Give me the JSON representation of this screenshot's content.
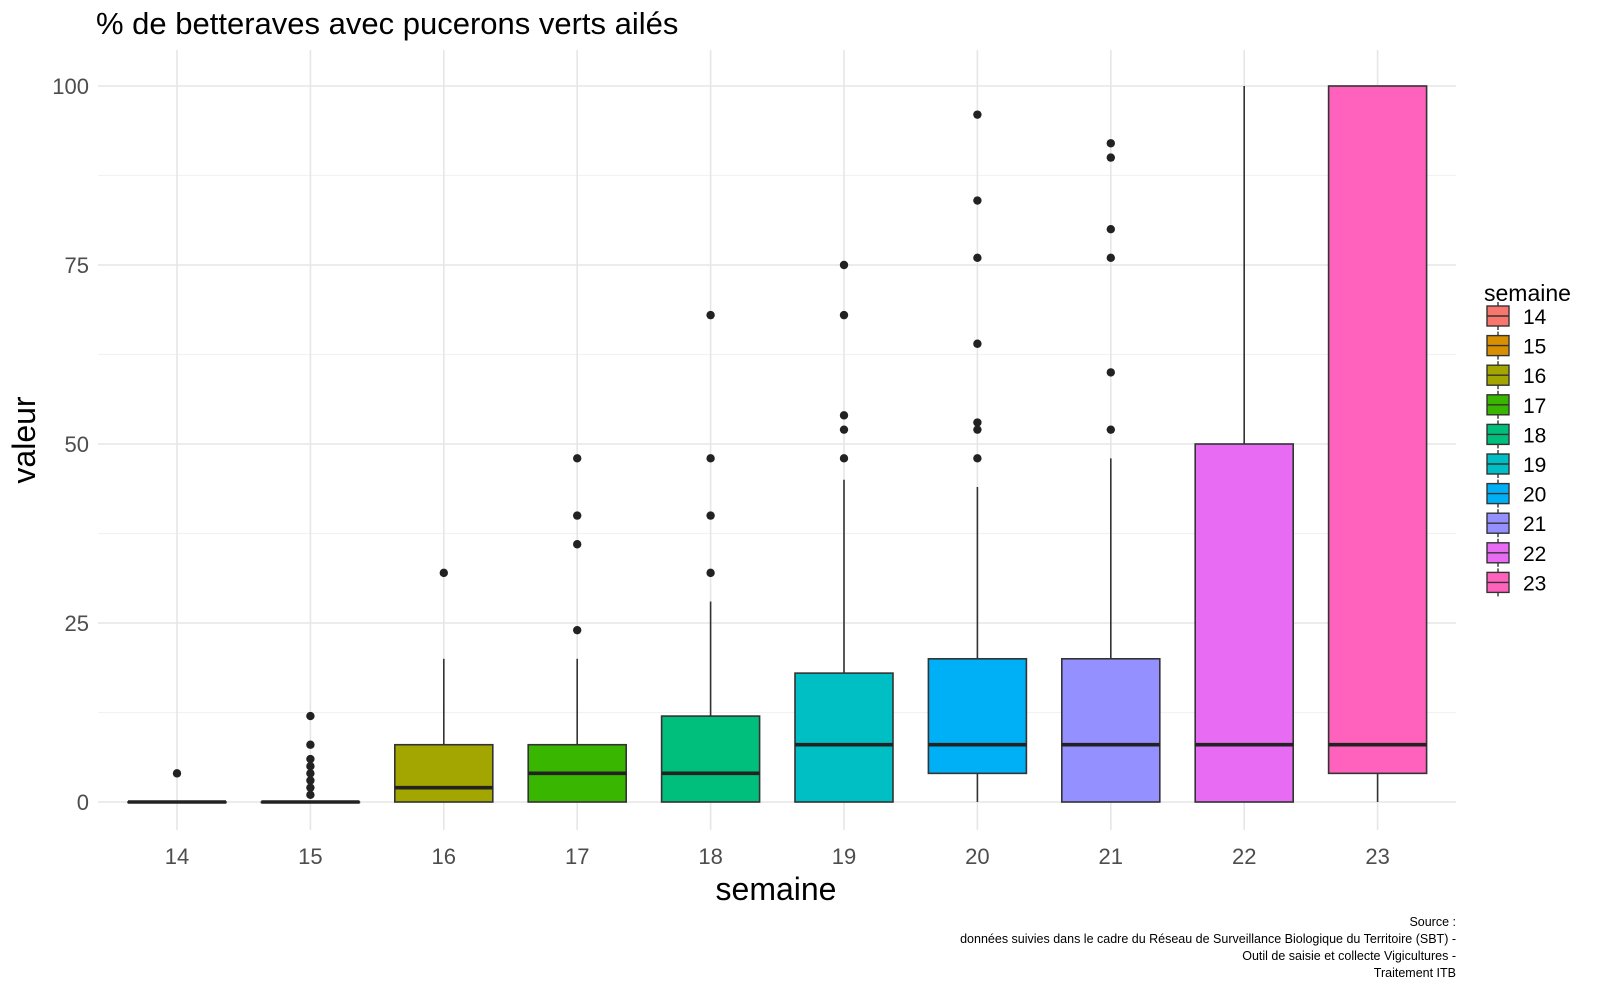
{
  "chart_data": {
    "type": "box",
    "title": "% de betteraves avec pucerons verts ailés",
    "xlabel": "semaine",
    "ylabel": "valeur",
    "ylim": [
      -4,
      105
    ],
    "yticks": [
      0,
      25,
      50,
      75,
      100
    ],
    "grid": true,
    "legend": {
      "title": "semaine",
      "position": "right"
    },
    "caption": [
      "Source :",
      "données suivies dans le cadre du Réseau de Surveillance Biologique du Territoire (SBT) -",
      "Outil de saisie et collecte Vigicultures -",
      "Traitement ITB"
    ],
    "categories": [
      "14",
      "15",
      "16",
      "17",
      "18",
      "19",
      "20",
      "21",
      "22",
      "23"
    ],
    "colors": [
      "#F8766D",
      "#D89000",
      "#A3A500",
      "#39B600",
      "#00BF7D",
      "#00BFC4",
      "#00B0F6",
      "#9590FF",
      "#E76BF3",
      "#FF62BC"
    ],
    "boxes": [
      {
        "semaine": "14",
        "min": 0,
        "q1": 0,
        "median": 0,
        "q3": 0,
        "max": 0,
        "outliers": [
          4
        ]
      },
      {
        "semaine": "15",
        "min": 0,
        "q1": 0,
        "median": 0,
        "q3": 0,
        "max": 0,
        "outliers": [
          1,
          2,
          3,
          4,
          5,
          6,
          8,
          12
        ]
      },
      {
        "semaine": "16",
        "min": 0,
        "q1": 0,
        "median": 2,
        "q3": 8,
        "max": 20,
        "outliers": [
          32
        ]
      },
      {
        "semaine": "17",
        "min": 0,
        "q1": 0,
        "median": 4,
        "q3": 8,
        "max": 20,
        "outliers": [
          24,
          36,
          40,
          48
        ]
      },
      {
        "semaine": "18",
        "min": 0,
        "q1": 0,
        "median": 4,
        "q3": 12,
        "max": 28,
        "outliers": [
          32,
          40,
          48,
          68
        ]
      },
      {
        "semaine": "19",
        "min": 0,
        "q1": 0,
        "median": 8,
        "q3": 18,
        "max": 45,
        "outliers": [
          48,
          52,
          54,
          68,
          75
        ]
      },
      {
        "semaine": "20",
        "min": 0,
        "q1": 4,
        "median": 8,
        "q3": 20,
        "max": 44,
        "outliers": [
          48,
          52,
          53,
          64,
          76,
          84,
          96
        ]
      },
      {
        "semaine": "21",
        "min": 0,
        "q1": 0,
        "median": 8,
        "q3": 20,
        "max": 48,
        "outliers": [
          52,
          60,
          76,
          80,
          90,
          92
        ]
      },
      {
        "semaine": "22",
        "min": 0,
        "q1": 0,
        "median": 8,
        "q3": 50,
        "max": 100,
        "outliers": []
      },
      {
        "semaine": "23",
        "min": 0,
        "q1": 4,
        "median": 8,
        "q3": 100,
        "max": 100,
        "outliers": []
      }
    ]
  }
}
